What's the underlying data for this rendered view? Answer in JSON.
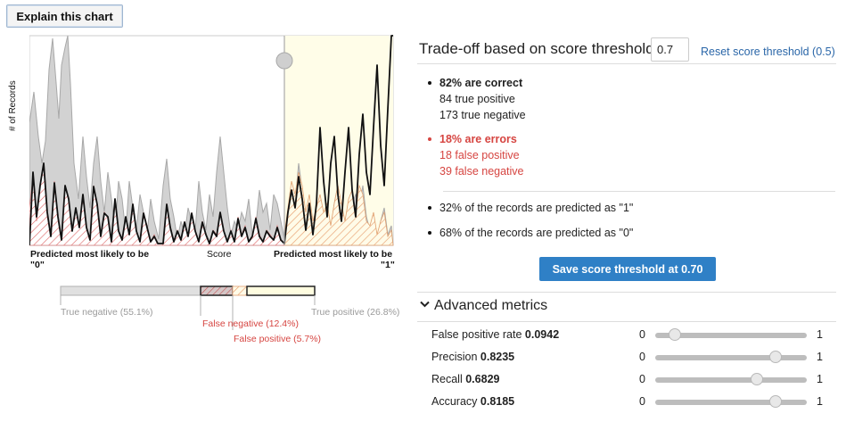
{
  "explain_button": "Explain this chart",
  "chart": {
    "y_axis_label": "# of Records",
    "x_left_label_line1": "Predicted most likely to be",
    "x_left_label_line2": "\"0\"",
    "x_center_label": "Score",
    "x_right_label_line1": "Predicted most likely to be",
    "x_right_label_line2": "\"1\"",
    "threshold": 0.7
  },
  "legend": {
    "true_negative": "True negative (55.1%)",
    "false_negative": "False negative (12.4%)",
    "false_positive": "False positive (5.7%)",
    "true_positive": "True positive (26.8%)",
    "shares": {
      "true_negative": 55.1,
      "false_negative": 12.4,
      "false_positive": 5.7,
      "true_positive": 26.8
    }
  },
  "panel": {
    "title": "Trade-off based on score threshold",
    "threshold_value": "0.7",
    "reset_link": "Reset score threshold (0.5)",
    "correct_heading": "82% are correct",
    "true_positive": "84 true positive",
    "true_negative": "173 true negative",
    "errors_heading": "18% are errors",
    "false_positive": "18 false positive",
    "false_negative": "39 false negative",
    "predicted_1": "32% of the records are predicted as \"1\"",
    "predicted_0": "68% of the records are predicted as \"0\"",
    "save_button": "Save score threshold at 0.70",
    "advanced_header": "Advanced metrics",
    "error_color": "#d64541",
    "accent_color": "#2f80c6"
  },
  "metrics": [
    {
      "label": "False positive rate",
      "value": "0.0942",
      "min": "0",
      "max": "1",
      "level": 0.0942
    },
    {
      "label": "Precision",
      "value": "0.8235",
      "min": "0",
      "max": "1",
      "level": 0.8235
    },
    {
      "label": "Recall",
      "value": "0.6829",
      "min": "0",
      "max": "1",
      "level": 0.6829
    },
    {
      "label": "Accuracy",
      "value": "0.8185",
      "min": "0",
      "max": "1",
      "level": 0.8185
    }
  ]
}
